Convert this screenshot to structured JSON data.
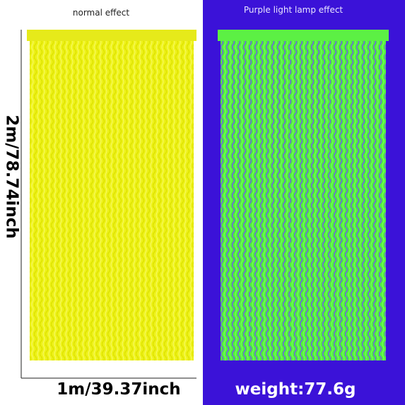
{
  "panels": {
    "left": {
      "caption": "normal effect"
    },
    "right": {
      "caption": "Purple light lamp effect"
    }
  },
  "dimensions": {
    "height": "2m/78.74inch",
    "width": "1m/39.37inch"
  },
  "weight": "weight:77.6g"
}
